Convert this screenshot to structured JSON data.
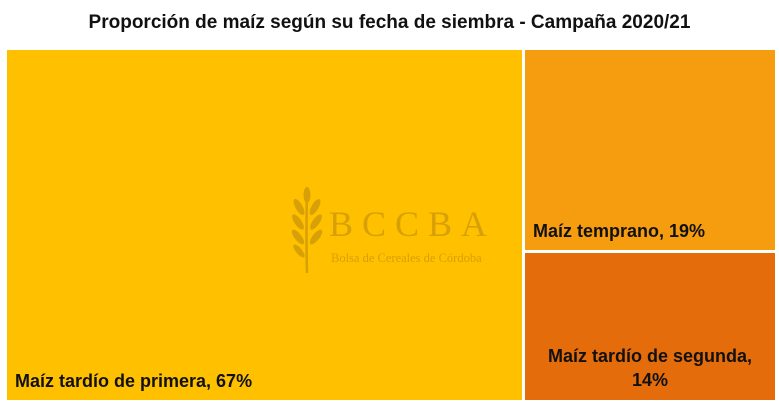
{
  "chart_data": {
    "type": "treemap",
    "title": "Proporción de maíz según su fecha de siembra - Campaña 2020/21",
    "items": [
      {
        "name": "Maíz tardío de primera",
        "value": 67,
        "label": "Maíz tardío de primera, 67%",
        "color": "#FFC000"
      },
      {
        "name": "Maíz temprano",
        "value": 19,
        "label": "Maíz temprano, 19%",
        "color": "#F59D0E"
      },
      {
        "name": "Maíz tardío de segunda",
        "value": 14,
        "label_line1": "Maíz tardío de segunda,",
        "label_line2": "14%",
        "color": "#E46C0A"
      }
    ]
  },
  "watermark": {
    "letters": "BCCBA",
    "subtitle": "Bolsa de Cereales de Córdoba",
    "icon": "wheat-icon",
    "color": "#B8860B"
  }
}
